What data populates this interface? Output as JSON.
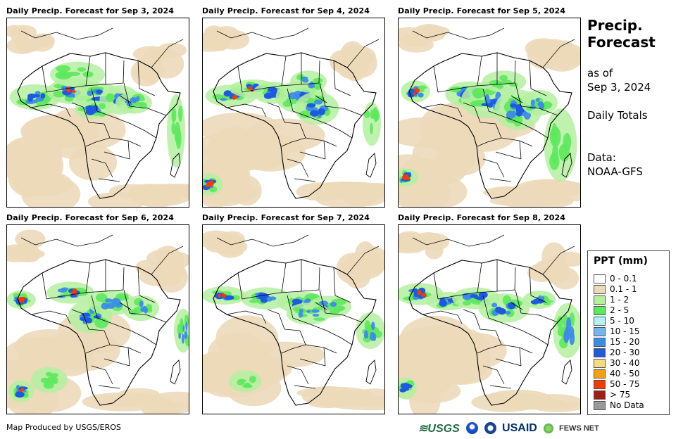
{
  "panels": [
    {
      "title": "Daily Precip. Forecast for Sep 3, 2024"
    },
    {
      "title": "Daily Precip. Forecast for Sep 4, 2024"
    },
    {
      "title": "Daily Precip. Forecast for Sep 5, 2024"
    },
    {
      "title": "Daily Precip. Forecast for Sep 6, 2024"
    },
    {
      "title": "Daily Precip. Forecast for Sep 7, 2024"
    },
    {
      "title": "Daily Precip. Forecast for Sep 8, 2024"
    }
  ],
  "side": {
    "title_line1": "Precip.",
    "title_line2": "Forecast",
    "asof_line1": "as of",
    "asof_line2": "Sep 3, 2024",
    "totals": "Daily Totals",
    "data_line1": "Data:",
    "data_line2": "NOAA-GFS"
  },
  "legend": {
    "title": "PPT (mm)",
    "items": [
      {
        "label": "0 - 0.1",
        "color": "#ffffff"
      },
      {
        "label": "0.1 - 1",
        "color": "#ecd9b9"
      },
      {
        "label": "1 - 2",
        "color": "#b4f0a0"
      },
      {
        "label": "2 - 5",
        "color": "#5ee85e"
      },
      {
        "label": "5 - 10",
        "color": "#b4f0f5"
      },
      {
        "label": "10 - 15",
        "color": "#78b4f0"
      },
      {
        "label": "15 - 20",
        "color": "#3c8ce6"
      },
      {
        "label": "20 - 30",
        "color": "#1e5adc"
      },
      {
        "label": "30 - 40",
        "color": "#f5dc82"
      },
      {
        "label": "40 - 50",
        "color": "#f5a014"
      },
      {
        "label": "50 - 75",
        "color": "#f03c0a"
      },
      {
        "label": "> 75",
        "color": "#a01e14"
      },
      {
        "label": "No Data",
        "color": "#999999"
      }
    ]
  },
  "footer": {
    "credit": "Map Produced by USGS/EROS",
    "logos": {
      "usgs": "USGS",
      "usaid": "USAID",
      "fews": "FEWS NET"
    }
  },
  "colors": {
    "land_dry": "#ecd9b9",
    "light_rain": "#b4f0a0",
    "mid_rain": "#5ee85e",
    "heavy_rain": "#3c8ce6",
    "very_heavy": "#1e5adc",
    "extreme": "#f03c0a"
  }
}
